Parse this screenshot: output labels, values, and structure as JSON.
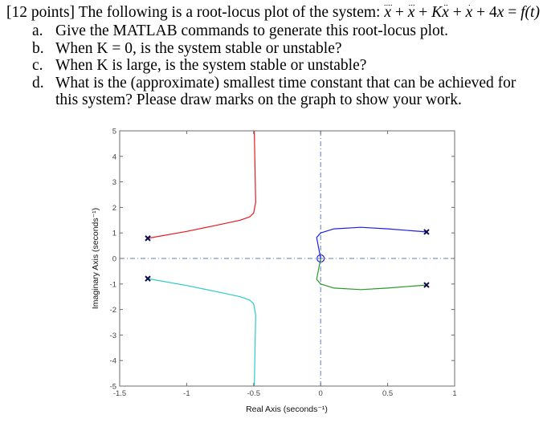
{
  "question": {
    "points": "[12 points]",
    "intro": "The following is a root-locus plot of the system:",
    "equation": {
      "terms": [
        {
          "dots": 4,
          "var": "x"
        },
        {
          "op": "+"
        },
        {
          "dots": 3,
          "var": "x"
        },
        {
          "op": "+"
        },
        {
          "coef": "K",
          "dots": 2,
          "var": "x"
        },
        {
          "op": "+"
        },
        {
          "dots": 1,
          "var": "x"
        },
        {
          "op": "+"
        },
        {
          "coef": "4",
          "dots": 0,
          "var": "x"
        },
        {
          "op": "="
        }
      ],
      "rhs": "f(t)"
    },
    "parts": [
      {
        "letter": "a.",
        "text": "Give the MATLAB commands to generate this root-locus plot."
      },
      {
        "letter": "b.",
        "text": "When K = 0, is the system stable or unstable?"
      },
      {
        "letter": "c.",
        "text": "When K is large, is the system stable or unstable?"
      },
      {
        "letter": "d.",
        "text": "What is the (approximate) smallest time constant that can be achieved for this system? Please draw marks on the graph to show your work."
      }
    ]
  },
  "chart_data": {
    "type": "line",
    "title": "",
    "xlabel": "Real Axis (seconds⁻¹)",
    "ylabel": "Imaginary Axis (seconds⁻¹)",
    "xlim": [
      -1.5,
      1
    ],
    "ylim": [
      -5,
      5
    ],
    "xticks": [
      -1.5,
      -1,
      -0.5,
      0,
      0.5,
      1
    ],
    "xtick_labels": [
      "-1.5",
      "-1",
      "-0.5",
      "0",
      "0.5",
      "1"
    ],
    "yticks": [
      -5,
      -4,
      -3,
      -2,
      -1,
      0,
      1,
      2,
      3,
      4,
      5
    ],
    "ytick_labels": [
      "-5",
      "-4",
      "-3",
      "-2",
      "-1",
      "0",
      "1",
      "2",
      "3",
      "4",
      "5"
    ],
    "grid": false,
    "poles": [
      {
        "re": -1.29,
        "im": 0.79
      },
      {
        "re": -1.29,
        "im": -0.79
      },
      {
        "re": 0.79,
        "im": 1.04
      },
      {
        "re": 0.79,
        "im": -1.04
      }
    ],
    "zeros": [
      {
        "re": 0,
        "im": 0
      }
    ],
    "series": [
      {
        "name": "branch-1",
        "color": "#e8191c",
        "points": [
          [
            -1.29,
            0.79
          ],
          [
            -1.0,
            1.06
          ],
          [
            -0.75,
            1.33
          ],
          [
            -0.6,
            1.5
          ],
          [
            -0.53,
            1.63
          ],
          [
            -0.5,
            1.78
          ],
          [
            -0.485,
            2.2
          ],
          [
            -0.49,
            3.5
          ],
          [
            -0.495,
            5.0
          ]
        ]
      },
      {
        "name": "branch-2",
        "color": "#2ec9c9",
        "points": [
          [
            -1.29,
            -0.79
          ],
          [
            -1.0,
            -1.06
          ],
          [
            -0.75,
            -1.33
          ],
          [
            -0.6,
            -1.5
          ],
          [
            -0.53,
            -1.63
          ],
          [
            -0.5,
            -1.78
          ],
          [
            -0.485,
            -2.2
          ],
          [
            -0.49,
            -3.5
          ],
          [
            -0.495,
            -5.0
          ]
        ]
      },
      {
        "name": "branch-3",
        "color": "#1f1fe6",
        "points": [
          [
            0.79,
            1.04
          ],
          [
            0.5,
            1.16
          ],
          [
            0.3,
            1.22
          ],
          [
            0.1,
            1.16
          ],
          [
            0.0,
            1.0
          ],
          [
            -0.03,
            0.82
          ],
          [
            0.0,
            0.0
          ]
        ]
      },
      {
        "name": "branch-4",
        "color": "#2a9a2a",
        "points": [
          [
            0.79,
            -1.04
          ],
          [
            0.5,
            -1.16
          ],
          [
            0.3,
            -1.22
          ],
          [
            0.1,
            -1.16
          ],
          [
            0.0,
            -1.0
          ],
          [
            -0.03,
            -0.82
          ],
          [
            0.0,
            0.0
          ]
        ]
      }
    ],
    "reference_lines": [
      {
        "orientation": "horizontal",
        "value": 0,
        "style": "dash-dot",
        "color": "#5b7fb5"
      },
      {
        "orientation": "vertical",
        "value": 0,
        "style": "dash-dot",
        "color": "#5b7fb5"
      }
    ]
  }
}
